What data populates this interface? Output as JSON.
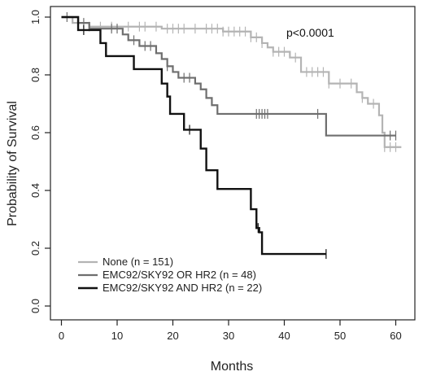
{
  "chart_data": {
    "type": "line",
    "subtype": "kaplan-meier",
    "title": "",
    "xlabel": "Months",
    "ylabel": "Probability of Survival",
    "xlim": [
      0,
      62
    ],
    "ylim": [
      0,
      1
    ],
    "xticks": [
      0,
      10,
      20,
      30,
      40,
      50,
      60
    ],
    "yticks": [
      0.0,
      0.2,
      0.4,
      0.6,
      0.8,
      1.0
    ],
    "xtick_labels": [
      "0",
      "10",
      "20",
      "30",
      "40",
      "50",
      "60"
    ],
    "ytick_labels": [
      "0.0",
      "0.2",
      "0.4",
      "0.6",
      "0.8",
      "1.0"
    ],
    "annotation": "p<0.0001",
    "grid": false,
    "legend_position": "bottom-left",
    "series": [
      {
        "name": "None (n = 151)",
        "color": "#b4b4b4",
        "steps": [
          [
            0,
            1.0
          ],
          [
            2,
            0.98
          ],
          [
            5,
            0.967
          ],
          [
            18,
            0.96
          ],
          [
            29,
            0.95
          ],
          [
            34,
            0.93
          ],
          [
            36,
            0.91
          ],
          [
            37,
            0.895
          ],
          [
            38,
            0.88
          ],
          [
            41,
            0.86
          ],
          [
            43,
            0.81
          ],
          [
            47,
            0.81
          ],
          [
            48,
            0.77
          ],
          [
            53,
            0.74
          ],
          [
            54,
            0.72
          ],
          [
            55,
            0.7
          ],
          [
            57,
            0.66
          ],
          [
            57.6,
            0.6
          ],
          [
            58,
            0.55
          ],
          [
            61,
            0.55
          ]
        ],
        "censor_x": [
          3,
          5,
          7,
          9,
          12,
          14,
          15,
          17,
          19,
          20,
          21,
          22,
          24,
          26,
          27,
          28,
          29,
          30,
          31,
          32,
          33,
          34,
          35,
          36,
          38,
          39,
          40,
          42,
          44,
          45,
          46,
          47,
          48,
          50,
          52,
          54,
          56,
          58,
          59,
          60
        ]
      },
      {
        "name": "EMC92/SKY92 OR HR2 (n = 48)",
        "color": "#6e6e6e",
        "steps": [
          [
            0,
            1.0
          ],
          [
            3,
            0.98
          ],
          [
            5,
            0.96
          ],
          [
            11,
            0.94
          ],
          [
            12,
            0.92
          ],
          [
            14,
            0.9
          ],
          [
            17,
            0.875
          ],
          [
            18,
            0.855
          ],
          [
            19,
            0.83
          ],
          [
            20,
            0.81
          ],
          [
            21,
            0.79
          ],
          [
            24,
            0.77
          ],
          [
            25,
            0.75
          ],
          [
            26,
            0.72
          ],
          [
            27,
            0.695
          ],
          [
            28,
            0.665
          ],
          [
            47,
            0.665
          ],
          [
            47.5,
            0.59
          ],
          [
            60,
            0.59
          ]
        ],
        "censor_x": [
          1,
          4,
          9,
          10,
          13,
          15,
          16,
          19,
          22,
          23,
          35,
          35.5,
          36,
          36.5,
          37,
          46,
          59,
          60
        ]
      },
      {
        "name": "EMC92/SKY92 AND HR2 (n = 22)",
        "color": "#111111",
        "steps": [
          [
            0,
            1.0
          ],
          [
            3,
            0.955
          ],
          [
            7,
            0.91
          ],
          [
            8,
            0.865
          ],
          [
            13,
            0.82
          ],
          [
            18,
            0.77
          ],
          [
            19,
            0.725
          ],
          [
            19.5,
            0.665
          ],
          [
            22,
            0.61
          ],
          [
            25,
            0.545
          ],
          [
            26,
            0.47
          ],
          [
            28,
            0.405
          ],
          [
            34,
            0.335
          ],
          [
            35,
            0.27
          ],
          [
            35.5,
            0.255
          ],
          [
            36,
            0.18
          ],
          [
            47.5,
            0.18
          ]
        ],
        "censor_x": [
          4,
          23,
          35.3,
          47.5
        ]
      }
    ]
  }
}
